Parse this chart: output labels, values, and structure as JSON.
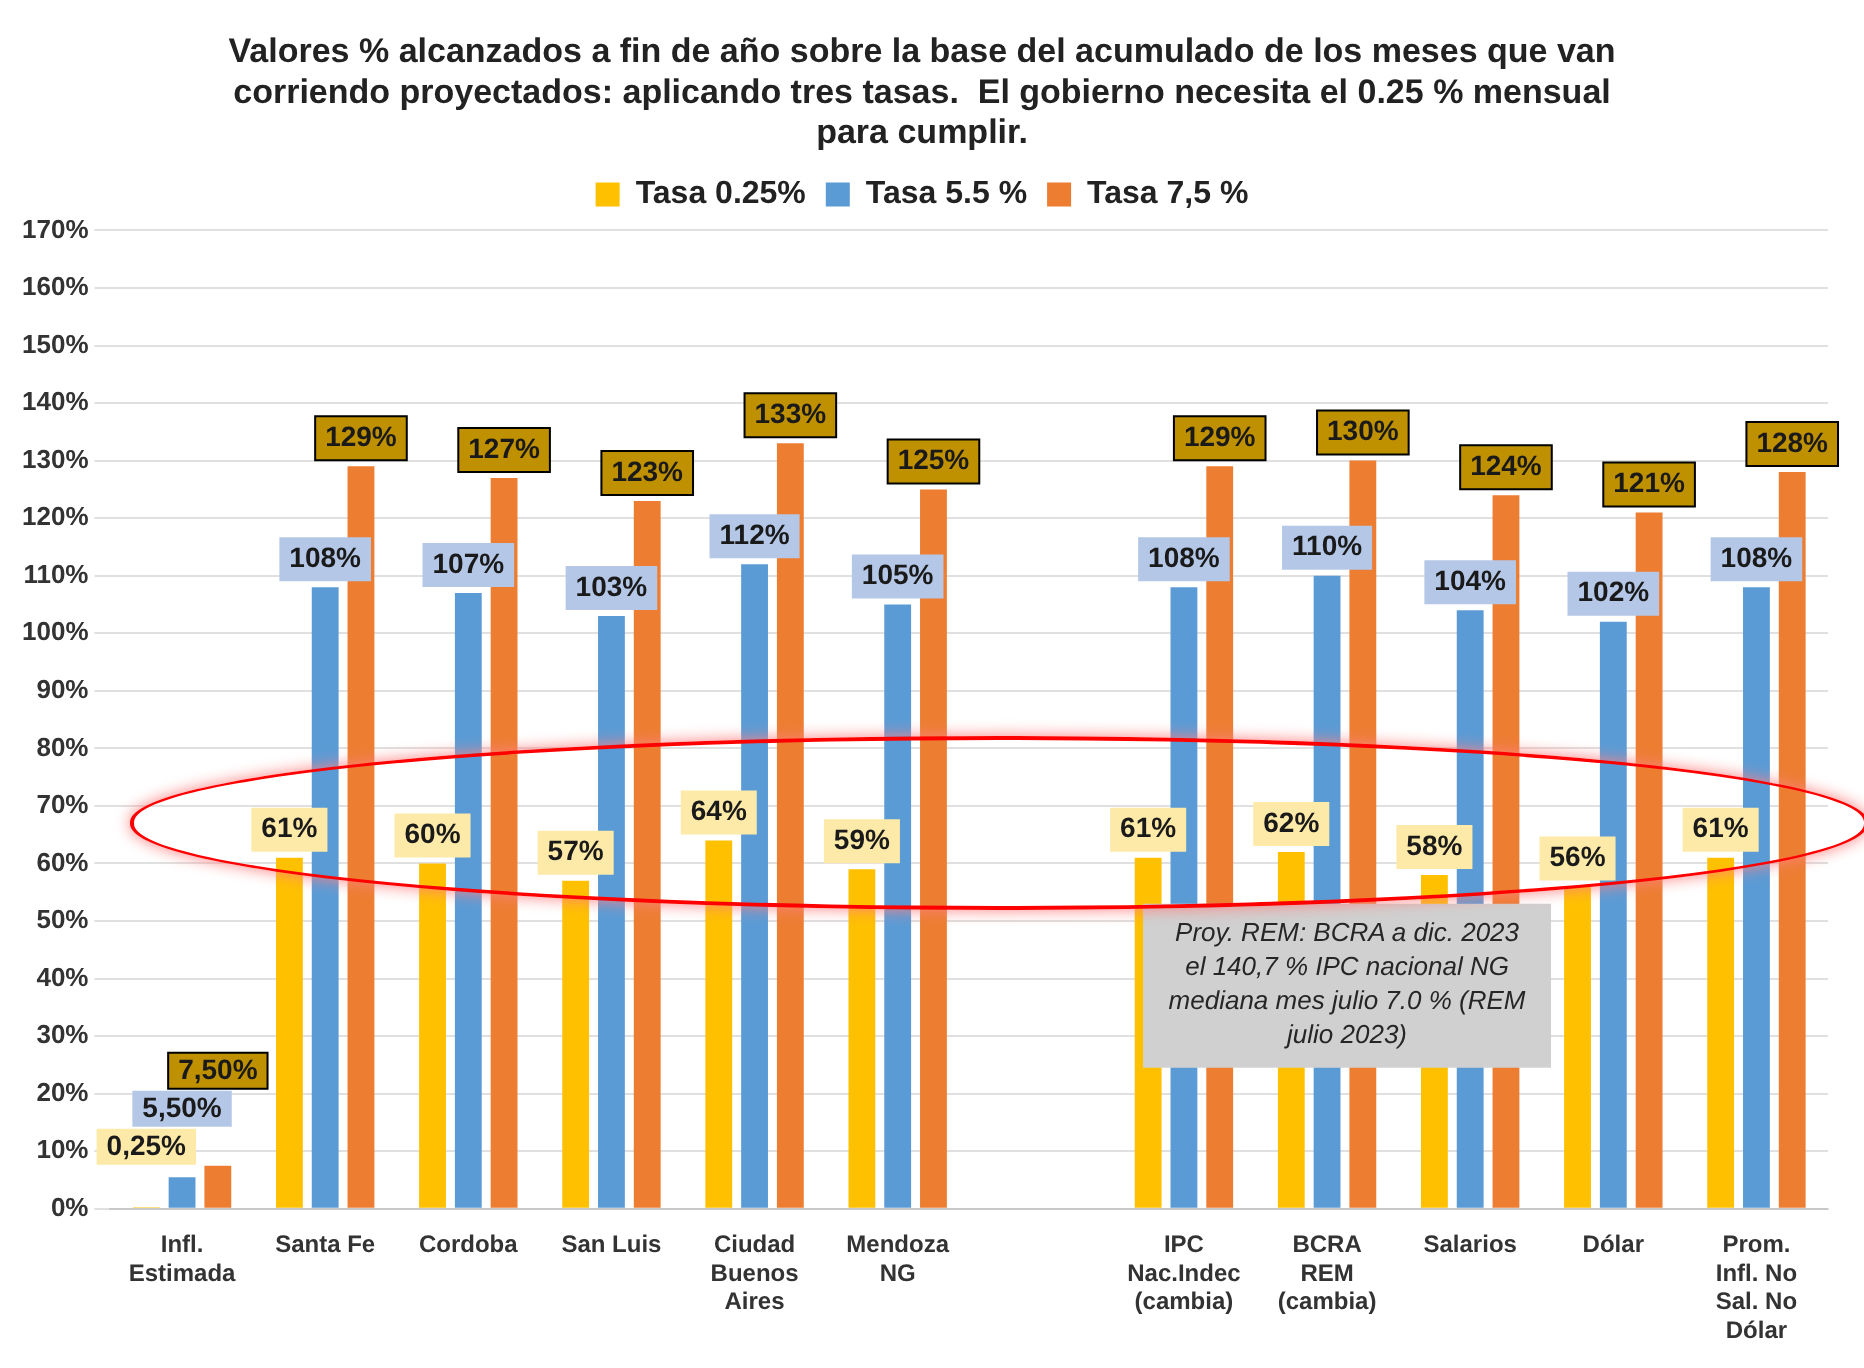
{
  "chart_data": {
    "type": "bar",
    "title": "Valores % alcanzados a fin de año sobre la base del acumulado de los meses que van corriendo proyectados: aplicando tres tasas.  El gobierno necesita el 0.25 % mensual para cumplir.",
    "categories": [
      "Infl. Estimada",
      "Santa Fe",
      "Cordoba",
      "San Luis",
      "Ciudad Buenos Aires",
      "Mendoza NG",
      null,
      "IPC Nac.Indec (cambia)",
      "BCRA REM (cambia)",
      "Salarios",
      "Dólar",
      "Prom. Infl. No Sal. No Dólar"
    ],
    "series": [
      {
        "name": "Tasa 0.25%",
        "color": "#ffc000",
        "values": [
          0.25,
          61,
          60,
          57,
          64,
          59,
          null,
          61,
          62,
          58,
          56,
          61
        ],
        "value_labels": [
          "0,25%",
          "61%",
          "60%",
          "57%",
          "64%",
          "59%",
          null,
          "61%",
          "62%",
          "58%",
          "56%",
          "61%"
        ]
      },
      {
        "name": "Tasa 5.5 %",
        "color": "#5b9bd5",
        "values": [
          5.5,
          108,
          107,
          103,
          112,
          105,
          null,
          108,
          110,
          104,
          102,
          108
        ],
        "value_labels": [
          "5,50%",
          "108%",
          "107%",
          "103%",
          "112%",
          "105%",
          null,
          "108%",
          "110%",
          "104%",
          "102%",
          "108%"
        ]
      },
      {
        "name": "Tasa 7,5 %",
        "color": "#ed7d31",
        "values": [
          7.5,
          129,
          127,
          123,
          133,
          125,
          null,
          129,
          130,
          124,
          121,
          128
        ],
        "value_labels": [
          "7,50%",
          "129%",
          "127%",
          "123%",
          "133%",
          "125%",
          null,
          "129%",
          "130%",
          "124%",
          "121%",
          "128%"
        ]
      }
    ],
    "ylim": [
      0,
      170
    ],
    "yticks": [
      {
        "value": 0,
        "label": "0%"
      },
      {
        "value": 10,
        "label": "10%"
      },
      {
        "value": 20,
        "label": "20%"
      },
      {
        "value": 30,
        "label": "30%"
      },
      {
        "value": 40,
        "label": "40%"
      },
      {
        "value": 50,
        "label": "50%"
      },
      {
        "value": 60,
        "label": "60%"
      },
      {
        "value": 70,
        "label": "70%"
      },
      {
        "value": 80,
        "label": "80%"
      },
      {
        "value": 90,
        "label": "90%"
      },
      {
        "value": 100,
        "label": "100%"
      },
      {
        "value": 110,
        "label": "110%"
      },
      {
        "value": 120,
        "label": "120%"
      },
      {
        "value": 130,
        "label": "130%"
      },
      {
        "value": 140,
        "label": "140%"
      },
      {
        "value": 150,
        "label": "150%"
      },
      {
        "value": 160,
        "label": "160%"
      },
      {
        "value": 170,
        "label": "170%"
      }
    ],
    "grid": "y",
    "legend": "top",
    "annotations": [
      "Proy. REM: BCRA a dic. 2023 el 140,7 % IPC nacional NG mediana mes julio 7.0 % (REM julio 2023)"
    ]
  }
}
